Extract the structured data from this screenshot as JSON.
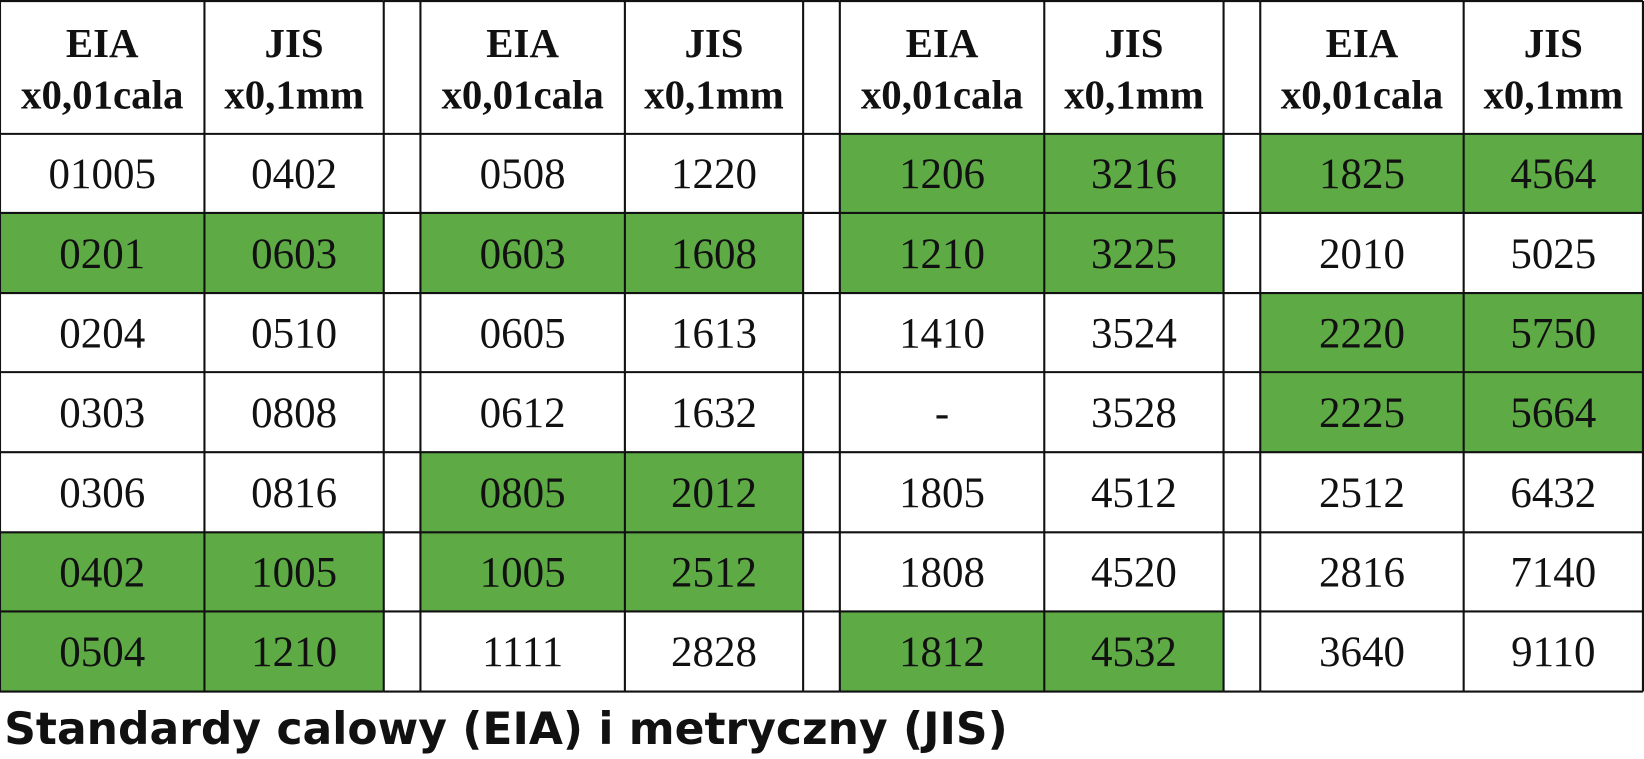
{
  "table": {
    "highlight_color": "#5eab46",
    "groups": [
      {
        "header": [
          {
            "line1": "EIA",
            "line2": "x0,01cala"
          },
          {
            "line1": "JIS",
            "line2": "x0,1mm"
          }
        ],
        "rows": [
          {
            "eia": "01005",
            "jis": "0402",
            "highlight": false
          },
          {
            "eia": "0201",
            "jis": "0603",
            "highlight": true
          },
          {
            "eia": "0204",
            "jis": "0510",
            "highlight": false
          },
          {
            "eia": "0303",
            "jis": "0808",
            "highlight": false
          },
          {
            "eia": "0306",
            "jis": "0816",
            "highlight": false
          },
          {
            "eia": "0402",
            "jis": "1005",
            "highlight": true
          },
          {
            "eia": "0504",
            "jis": "1210",
            "highlight": true
          }
        ]
      },
      {
        "header": [
          {
            "line1": "EIA",
            "line2": "x0,01cala"
          },
          {
            "line1": "JIS",
            "line2": "x0,1mm"
          }
        ],
        "rows": [
          {
            "eia": "0508",
            "jis": "1220",
            "highlight": false
          },
          {
            "eia": "0603",
            "jis": "1608",
            "highlight": true
          },
          {
            "eia": "0605",
            "jis": "1613",
            "highlight": false
          },
          {
            "eia": "0612",
            "jis": "1632",
            "highlight": false
          },
          {
            "eia": "0805",
            "jis": "2012",
            "highlight": true
          },
          {
            "eia": "1005",
            "jis": "2512",
            "highlight": true
          },
          {
            "eia": "1111",
            "jis": "2828",
            "highlight": false
          }
        ]
      },
      {
        "header": [
          {
            "line1": "EIA",
            "line2": "x0,01cala"
          },
          {
            "line1": "JIS",
            "line2": "x0,1mm"
          }
        ],
        "rows": [
          {
            "eia": "1206",
            "jis": "3216",
            "highlight": true
          },
          {
            "eia": "1210",
            "jis": "3225",
            "highlight": true
          },
          {
            "eia": "1410",
            "jis": "3524",
            "highlight": false
          },
          {
            "eia": "-",
            "jis": "3528",
            "highlight": false
          },
          {
            "eia": "1805",
            "jis": "4512",
            "highlight": false
          },
          {
            "eia": "1808",
            "jis": "4520",
            "highlight": false
          },
          {
            "eia": "1812",
            "jis": "4532",
            "highlight": true
          }
        ]
      },
      {
        "header": [
          {
            "line1": "EIA",
            "line2": "x0,01cala"
          },
          {
            "line1": "JIS",
            "line2": "x0,1mm"
          }
        ],
        "rows": [
          {
            "eia": "1825",
            "jis": "4564",
            "highlight": true
          },
          {
            "eia": "2010",
            "jis": "5025",
            "highlight": false
          },
          {
            "eia": "2220",
            "jis": "5750",
            "highlight": true
          },
          {
            "eia": "2225",
            "jis": "5664",
            "highlight": true
          },
          {
            "eia": "2512",
            "jis": "6432",
            "highlight": false
          },
          {
            "eia": "2816",
            "jis": "7140",
            "highlight": false
          },
          {
            "eia": "3640",
            "jis": "9110",
            "highlight": false
          }
        ]
      }
    ]
  },
  "caption": "Standardy calowy (EIA) i metryczny (JIS)"
}
